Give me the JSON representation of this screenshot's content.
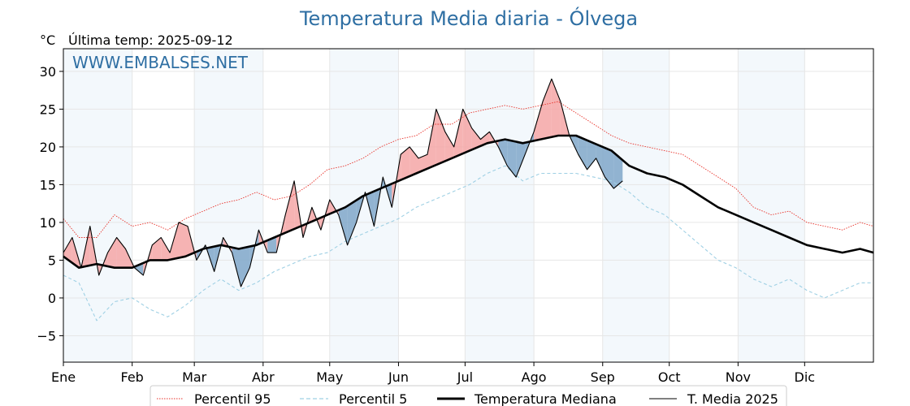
{
  "chart_data": {
    "type": "line",
    "title": "Temperatura Media diaria - Ólvega",
    "unit": "°C",
    "last_reading": "Última temp: 2025-09-12",
    "watermark": "WWW.EMBALSES.NET",
    "xlabel": "",
    "ylabel": "",
    "ylim": [
      -8.5,
      33
    ],
    "yticks": [
      -5,
      0,
      5,
      10,
      15,
      20,
      25,
      30
    ],
    "x_domain_days": [
      1,
      366
    ],
    "grid": true,
    "legend_position": "bottom",
    "months": [
      {
        "label": "Ene",
        "day": 1
      },
      {
        "label": "Feb",
        "day": 32
      },
      {
        "label": "Mar",
        "day": 60
      },
      {
        "label": "Abr",
        "day": 91
      },
      {
        "label": "May",
        "day": 121
      },
      {
        "label": "Jun",
        "day": 152
      },
      {
        "label": "Jul",
        "day": 182
      },
      {
        "label": "Ago",
        "day": 213
      },
      {
        "label": "Sep",
        "day": 244
      },
      {
        "label": "Oct",
        "day": 274
      },
      {
        "label": "Nov",
        "day": 305
      },
      {
        "label": "Dic",
        "day": 335
      }
    ],
    "series": [
      {
        "name": "Percentil 95",
        "color": "#e8322a",
        "style": "dotted",
        "x": [
          1,
          8,
          16,
          24,
          32,
          40,
          48,
          56,
          64,
          72,
          80,
          88,
          96,
          104,
          112,
          120,
          128,
          136,
          144,
          152,
          160,
          168,
          176,
          184,
          192,
          200,
          208,
          216,
          224,
          232,
          240,
          248,
          256,
          264,
          272,
          280,
          288,
          296,
          304,
          312,
          320,
          328,
          336,
          344,
          352,
          360,
          366
        ],
        "values": [
          10.5,
          8,
          8,
          11,
          9.5,
          10,
          9,
          10.5,
          11.5,
          12.5,
          13,
          14,
          13,
          13.5,
          15,
          17,
          17.5,
          18.5,
          20,
          21,
          21.5,
          23,
          23,
          24.5,
          25,
          25.5,
          25,
          25.5,
          26,
          24.5,
          23,
          21.5,
          20.5,
          20,
          19.5,
          19,
          17.5,
          16,
          14.5,
          12,
          11,
          11.5,
          10,
          9.5,
          9,
          10,
          9.5
        ]
      },
      {
        "name": "Percentil 5",
        "color": "#9fd0e4",
        "style": "dashed",
        "x": [
          1,
          8,
          16,
          24,
          32,
          40,
          48,
          56,
          64,
          72,
          80,
          88,
          96,
          104,
          112,
          120,
          128,
          136,
          144,
          152,
          160,
          168,
          176,
          184,
          192,
          200,
          208,
          216,
          224,
          232,
          240,
          248,
          256,
          264,
          272,
          280,
          288,
          296,
          304,
          312,
          320,
          328,
          336,
          344,
          352,
          360,
          366
        ],
        "values": [
          3,
          2,
          -3,
          -0.5,
          0,
          -1.5,
          -2.5,
          -1,
          1,
          2.5,
          1,
          2,
          3.5,
          4.5,
          5.5,
          6,
          7.5,
          8.5,
          9.5,
          10.5,
          12,
          13,
          14,
          15,
          16.5,
          17.5,
          15.5,
          16.5,
          16.5,
          16.5,
          16,
          15.5,
          14,
          12,
          11,
          9,
          7,
          5,
          4,
          2.5,
          1.5,
          2.5,
          1,
          0,
          1,
          2,
          2
        ]
      },
      {
        "name": "Temperatura Mediana",
        "color": "#000000",
        "style": "solid-thick",
        "x": [
          1,
          8,
          16,
          24,
          32,
          40,
          48,
          56,
          64,
          72,
          80,
          88,
          96,
          104,
          112,
          120,
          128,
          136,
          144,
          152,
          160,
          168,
          176,
          184,
          192,
          200,
          208,
          216,
          224,
          232,
          240,
          248,
          256,
          264,
          272,
          280,
          288,
          296,
          304,
          312,
          320,
          328,
          336,
          344,
          352,
          360,
          366
        ],
        "values": [
          5.5,
          4,
          4.5,
          4,
          4,
          5,
          5,
          5.5,
          6.5,
          7,
          6.5,
          7,
          8,
          9,
          10,
          11,
          12,
          13.5,
          14.5,
          15.5,
          16.5,
          17.5,
          18.5,
          19.5,
          20.5,
          21,
          20.5,
          21,
          21.5,
          21.5,
          20.5,
          19.5,
          17.5,
          16.5,
          16,
          15,
          13.5,
          12,
          11,
          10,
          9,
          8,
          7,
          6.5,
          6,
          6.5,
          6
        ]
      },
      {
        "name": "T. Media 2025",
        "color": "#000000",
        "style": "solid-thin",
        "x": [
          1,
          5,
          9,
          13,
          17,
          21,
          25,
          29,
          33,
          37,
          41,
          45,
          49,
          53,
          57,
          61,
          65,
          69,
          73,
          77,
          81,
          85,
          89,
          93,
          97,
          101,
          105,
          109,
          113,
          117,
          121,
          125,
          129,
          133,
          137,
          141,
          145,
          149,
          153,
          157,
          161,
          165,
          169,
          173,
          177,
          181,
          185,
          189,
          193,
          197,
          201,
          205,
          209,
          213,
          217,
          221,
          225,
          229,
          233,
          237,
          241,
          245,
          249,
          253
        ],
        "values": [
          6,
          8,
          4,
          9.5,
          3,
          6,
          8,
          6.5,
          4,
          3,
          7,
          8,
          6,
          10,
          9.5,
          5,
          7,
          3.5,
          8,
          6,
          1.5,
          4,
          9,
          6,
          6,
          11,
          15.5,
          8,
          12,
          9,
          13,
          11,
          7,
          10,
          14,
          9.5,
          16,
          12,
          19,
          20,
          18.5,
          19,
          25,
          22,
          20,
          25,
          22.5,
          21,
          22,
          20,
          17.5,
          16,
          19,
          22,
          26,
          29,
          26,
          21.5,
          19,
          17,
          18.5,
          16,
          14.5,
          15.5
        ]
      }
    ]
  },
  "legend": {
    "items": [
      {
        "label": "Percentil 95"
      },
      {
        "label": "Percentil 5"
      },
      {
        "label": "Temperatura Mediana"
      },
      {
        "label": "T. Media 2025"
      }
    ]
  }
}
